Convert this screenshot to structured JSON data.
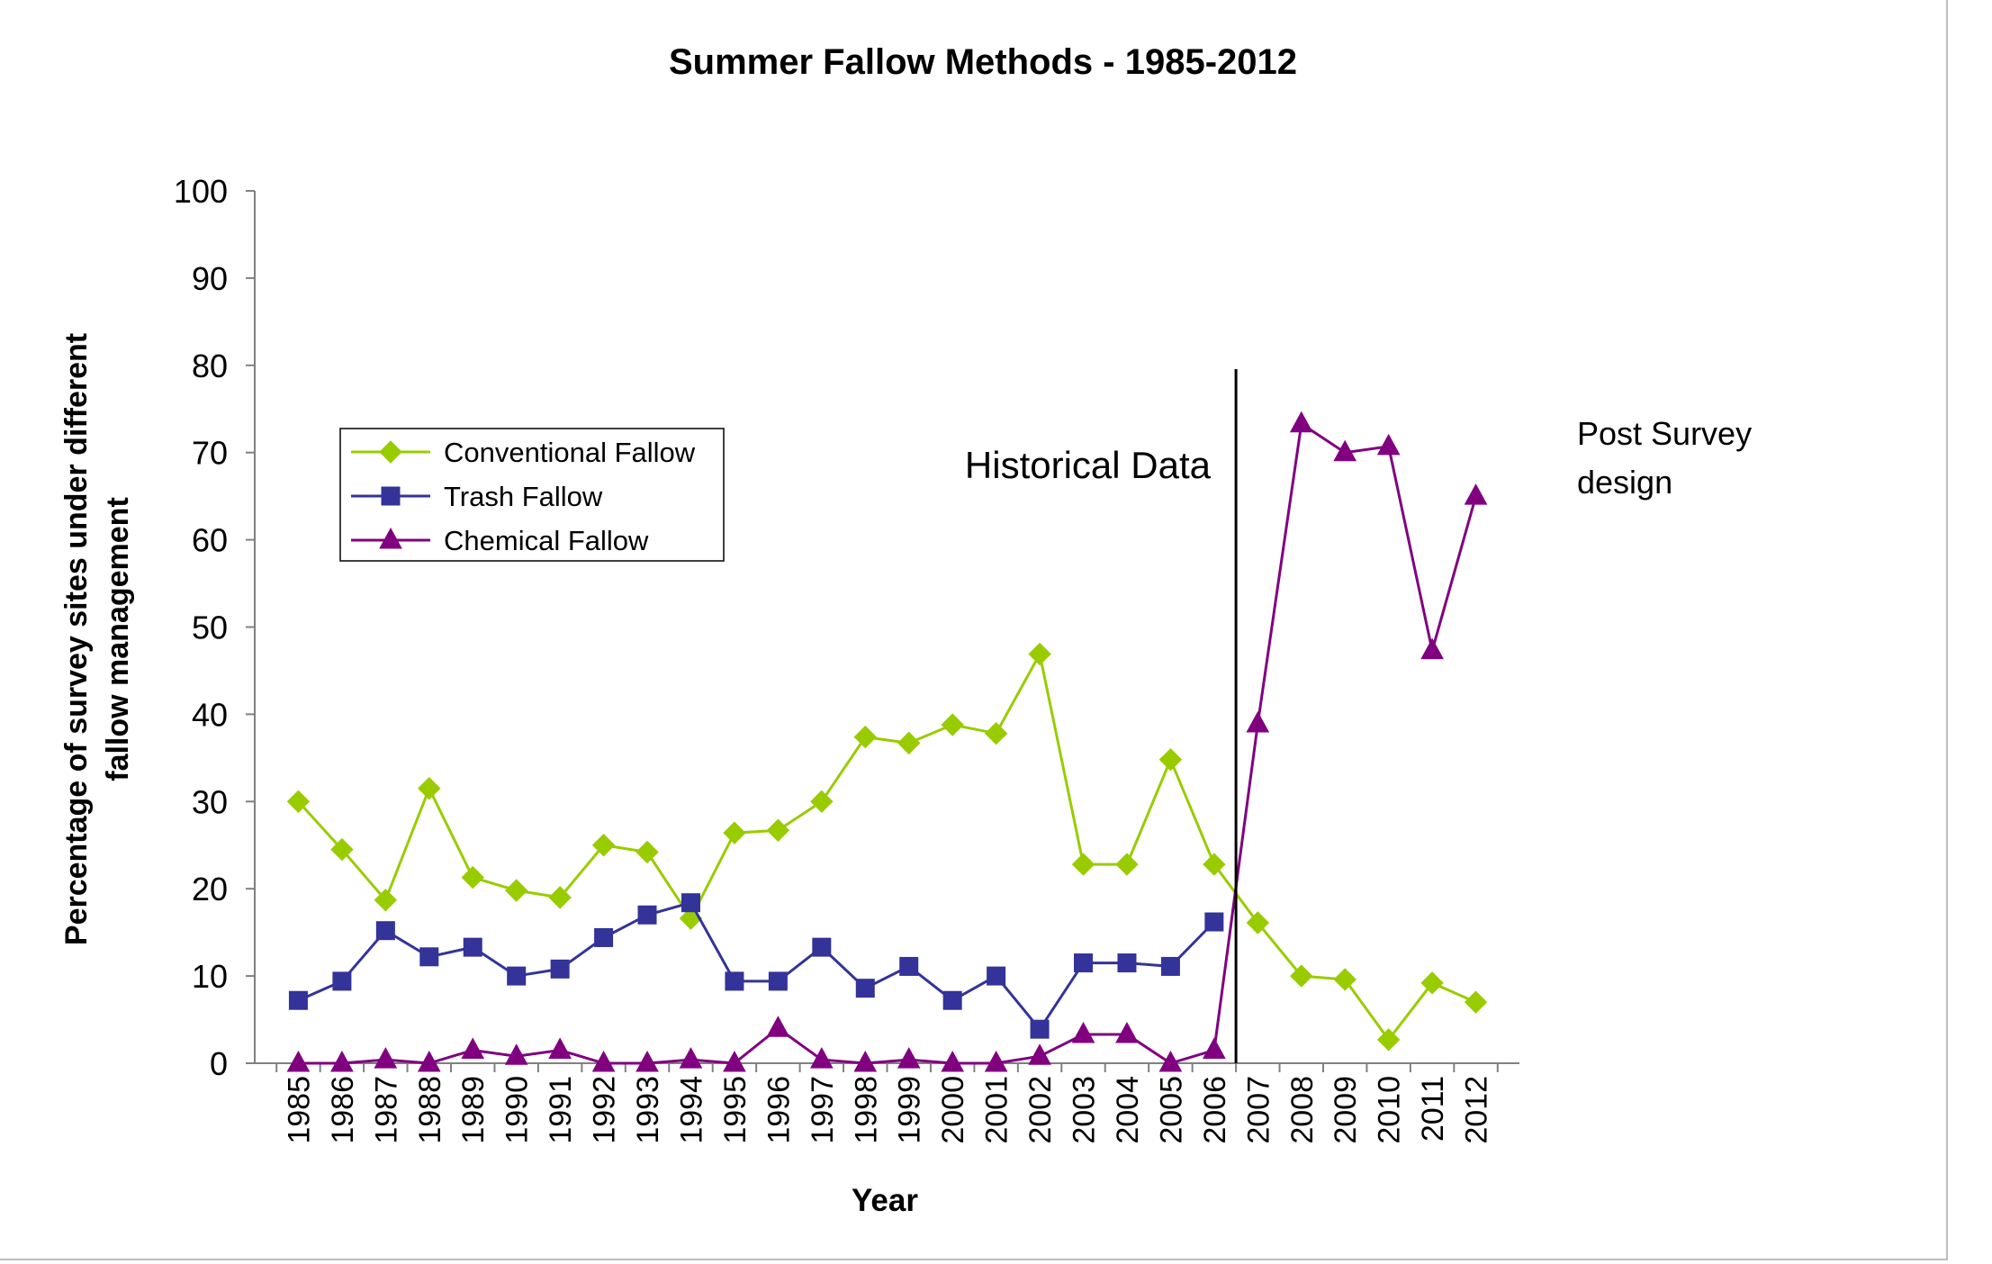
{
  "chart_data": {
    "type": "line",
    "title": "Summer Fallow Methods - 1985-2012",
    "xlabel": "Year",
    "ylabel": "Percentage of survey sites under different fallow management",
    "ylabel_lines": [
      "Percentage of survey sites under different",
      "fallow management"
    ],
    "ylim": [
      0,
      100
    ],
    "yticks": [
      0,
      10,
      20,
      30,
      40,
      50,
      60,
      70,
      80,
      90,
      100
    ],
    "grid": false,
    "legend_position": "left",
    "categories": [
      "1985",
      "1986",
      "1987",
      "1988",
      "1989",
      "1990",
      "1991",
      "1992",
      "1993",
      "1994",
      "1995",
      "1996",
      "1997",
      "1998",
      "1999",
      "2000",
      "2001",
      "2002",
      "2003",
      "2004",
      "2005",
      "2006",
      "2007",
      "2008",
      "2009",
      "2010",
      "2011",
      "2012"
    ],
    "series": [
      {
        "name": "Conventional Fallow",
        "marker": "diamond",
        "color": "#99cc00",
        "values": [
          30,
          24.5,
          18.7,
          31.5,
          21.3,
          19.8,
          19,
          25,
          24.2,
          16.6,
          26.4,
          26.7,
          30,
          37.4,
          36.7,
          38.8,
          37.8,
          46.9,
          22.8,
          22.8,
          34.8,
          22.8,
          16.1,
          10,
          9.6,
          2.7,
          9.2,
          7
        ]
      },
      {
        "name": "Trash Fallow",
        "marker": "square",
        "color": "#333399",
        "values": [
          7.2,
          9.4,
          15.2,
          12.2,
          13.3,
          10,
          10.8,
          14.4,
          17,
          18.4,
          9.4,
          9.4,
          13.3,
          8.6,
          11.1,
          7.2,
          10,
          3.9,
          11.5,
          11.5,
          11.1,
          16.2,
          null,
          null,
          null,
          null,
          null,
          null
        ]
      },
      {
        "name": "Chemical Fallow",
        "marker": "triangle",
        "color": "#800080",
        "values": [
          0,
          0,
          0.4,
          0,
          1.5,
          0.8,
          1.5,
          0,
          0,
          0.4,
          0,
          4,
          0.4,
          0,
          0.4,
          0,
          0,
          0.8,
          3.3,
          3.3,
          0,
          1.5,
          38.9,
          73.3,
          70,
          70.7,
          47.3,
          65
        ]
      }
    ],
    "annotations": {
      "historical": "Historical Data",
      "post_lines": [
        "Post Survey",
        "design"
      ]
    },
    "divider_between": [
      "2006",
      "2007"
    ]
  }
}
